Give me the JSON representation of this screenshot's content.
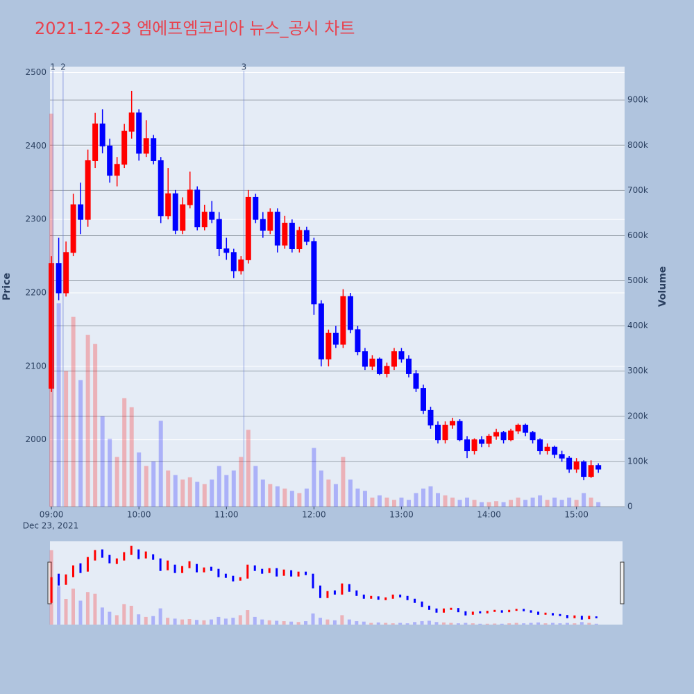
{
  "chart_data": {
    "type": "candlestick",
    "title": "2021-12-23 엠에프엠코리아 뉴스_공시 차트",
    "y_title": "Price",
    "y2_title": "Volume",
    "x_date_label": "Dec 23, 2021",
    "xlim": [
      "08:59",
      "15:33"
    ],
    "xticks": [
      "09:00",
      "10:00",
      "11:00",
      "12:00",
      "13:00",
      "14:00",
      "15:00"
    ],
    "ylim": [
      1909,
      2508
    ],
    "yticks": [
      2000,
      2100,
      2200,
      2300,
      2400,
      2500
    ],
    "y2lim": [
      0,
      974000
    ],
    "y2ticks": [
      0,
      {
        "value": 100000,
        "label": "100k"
      },
      {
        "value": 200000,
        "label": "200k"
      },
      {
        "value": 300000,
        "label": "300k"
      },
      {
        "value": 400000,
        "label": "400k"
      },
      {
        "value": 500000,
        "label": "500k"
      },
      {
        "value": 600000,
        "label": "600k"
      },
      {
        "value": 700000,
        "label": "700k"
      },
      {
        "value": 800000,
        "label": "800k"
      },
      {
        "value": 900000,
        "label": "900k"
      }
    ],
    "up_color": "#ff0000",
    "down_color": "#0000ff",
    "grid": true,
    "annotations": [
      {
        "x": "09:01",
        "text": "1"
      },
      {
        "x": "09:08",
        "text": "2"
      },
      {
        "x": "11:12",
        "text": "3"
      }
    ],
    "x": [
      "09:00",
      "09:05",
      "09:10",
      "09:15",
      "09:20",
      "09:25",
      "09:30",
      "09:35",
      "09:40",
      "09:45",
      "09:50",
      "09:55",
      "10:00",
      "10:05",
      "10:10",
      "10:15",
      "10:20",
      "10:25",
      "10:30",
      "10:35",
      "10:40",
      "10:45",
      "10:50",
      "10:55",
      "11:00",
      "11:05",
      "11:10",
      "11:15",
      "11:20",
      "11:25",
      "11:30",
      "11:35",
      "11:40",
      "11:45",
      "11:50",
      "11:55",
      "12:00",
      "12:05",
      "12:10",
      "12:15",
      "12:20",
      "12:25",
      "12:30",
      "12:35",
      "12:40",
      "12:45",
      "12:50",
      "12:55",
      "13:00",
      "13:05",
      "13:10",
      "13:15",
      "13:20",
      "13:25",
      "13:30",
      "13:35",
      "13:40",
      "13:45",
      "13:50",
      "13:55",
      "14:00",
      "14:05",
      "14:10",
      "14:15",
      "14:20",
      "14:25",
      "14:30",
      "14:35",
      "14:40",
      "14:45",
      "14:50",
      "14:55",
      "15:00",
      "15:05",
      "15:10",
      "15:15"
    ],
    "open": [
      2070,
      2240,
      2200,
      2255,
      2320,
      2300,
      2380,
      2430,
      2400,
      2360,
      2375,
      2420,
      2445,
      2390,
      2410,
      2380,
      2305,
      2335,
      2285,
      2320,
      2340,
      2290,
      2310,
      2300,
      2260,
      2255,
      2230,
      2245,
      2330,
      2300,
      2285,
      2310,
      2265,
      2295,
      2260,
      2285,
      2270,
      2185,
      2110,
      2145,
      2130,
      2195,
      2150,
      2120,
      2100,
      2110,
      2090,
      2100,
      2120,
      2110,
      2090,
      2070,
      2040,
      2020,
      2000,
      2020,
      2025,
      2000,
      1985,
      2000,
      1995,
      2005,
      2010,
      2000,
      2012,
      2020,
      2010,
      2000,
      1985,
      1990,
      1980,
      1975,
      1960,
      1970,
      1950,
      1965
    ],
    "high": [
      2250,
      2275,
      2270,
      2335,
      2350,
      2395,
      2445,
      2450,
      2410,
      2385,
      2430,
      2475,
      2450,
      2435,
      2415,
      2385,
      2370,
      2340,
      2330,
      2365,
      2345,
      2320,
      2325,
      2310,
      2275,
      2260,
      2250,
      2340,
      2335,
      2310,
      2315,
      2315,
      2305,
      2300,
      2290,
      2290,
      2275,
      2190,
      2150,
      2155,
      2205,
      2200,
      2155,
      2125,
      2115,
      2112,
      2105,
      2125,
      2125,
      2115,
      2095,
      2075,
      2045,
      2025,
      2025,
      2030,
      2028,
      2005,
      2002,
      2005,
      2008,
      2015,
      2012,
      2015,
      2022,
      2022,
      2012,
      2002,
      1995,
      1992,
      1985,
      1978,
      1975,
      1972,
      1972,
      1968
    ],
    "low": [
      2065,
      2190,
      2195,
      2250,
      2280,
      2290,
      2370,
      2390,
      2350,
      2345,
      2370,
      2410,
      2380,
      2385,
      2375,
      2295,
      2300,
      2280,
      2280,
      2315,
      2285,
      2285,
      2295,
      2250,
      2245,
      2220,
      2225,
      2240,
      2295,
      2275,
      2280,
      2255,
      2260,
      2255,
      2255,
      2265,
      2170,
      2100,
      2100,
      2125,
      2125,
      2145,
      2115,
      2095,
      2095,
      2088,
      2085,
      2095,
      2105,
      2085,
      2065,
      2035,
      2015,
      1995,
      1995,
      2015,
      1998,
      1975,
      1980,
      1990,
      1990,
      2000,
      1995,
      1998,
      2008,
      2005,
      1995,
      1980,
      1980,
      1975,
      1970,
      1955,
      1955,
      1945,
      1948,
      1955
    ],
    "close": [
      2240,
      2200,
      2255,
      2320,
      2300,
      2380,
      2430,
      2400,
      2360,
      2375,
      2420,
      2445,
      2390,
      2410,
      2380,
      2305,
      2335,
      2285,
      2320,
      2340,
      2290,
      2310,
      2300,
      2260,
      2255,
      2230,
      2245,
      2330,
      2300,
      2285,
      2310,
      2265,
      2295,
      2260,
      2285,
      2270,
      2185,
      2110,
      2145,
      2130,
      2195,
      2150,
      2120,
      2100,
      2110,
      2090,
      2100,
      2120,
      2110,
      2090,
      2070,
      2040,
      2020,
      2000,
      2020,
      2025,
      2000,
      1985,
      2000,
      1995,
      2005,
      2010,
      2000,
      2012,
      2020,
      2010,
      2000,
      1985,
      1990,
      1980,
      1975,
      1960,
      1970,
      1950,
      1965,
      1960
    ],
    "volume": [
      870000,
      450000,
      300000,
      420000,
      280000,
      380000,
      360000,
      200000,
      150000,
      110000,
      240000,
      220000,
      120000,
      90000,
      100000,
      190000,
      80000,
      70000,
      60000,
      65000,
      55000,
      50000,
      60000,
      90000,
      70000,
      80000,
      110000,
      170000,
      90000,
      60000,
      50000,
      45000,
      40000,
      35000,
      30000,
      40000,
      130000,
      80000,
      60000,
      50000,
      110000,
      60000,
      40000,
      35000,
      20000,
      25000,
      20000,
      15000,
      20000,
      15000,
      30000,
      40000,
      45000,
      30000,
      25000,
      20000,
      15000,
      20000,
      15000,
      10000,
      10000,
      12000,
      10000,
      15000,
      20000,
      15000,
      20000,
      25000,
      15000,
      20000,
      15000,
      20000,
      15000,
      30000,
      20000,
      10000
    ]
  }
}
